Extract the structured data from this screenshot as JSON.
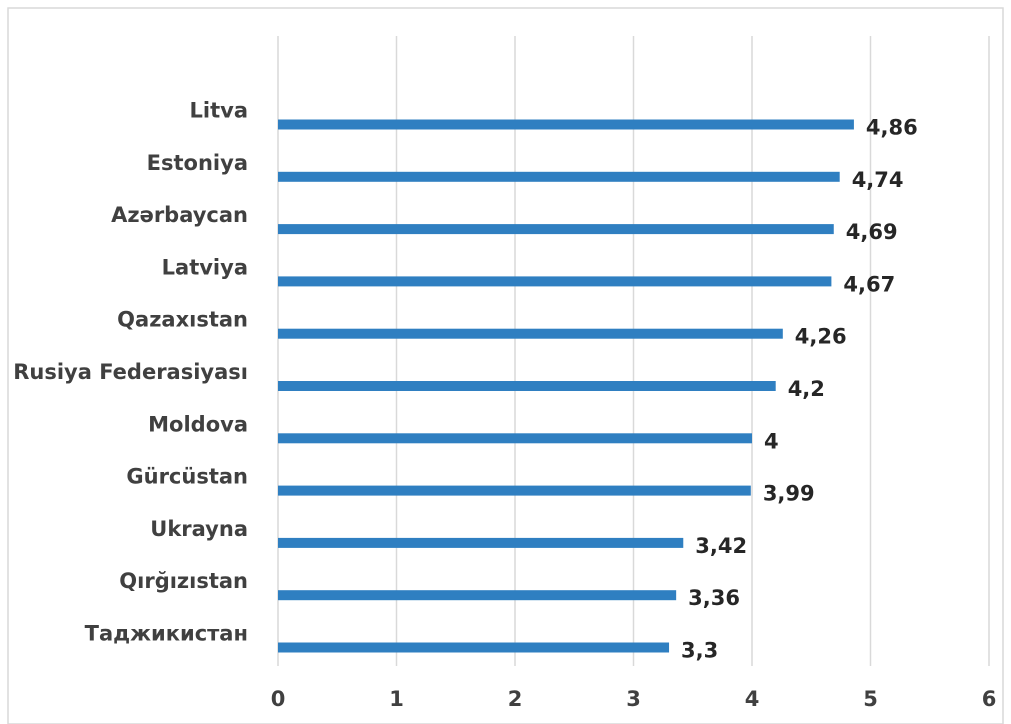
{
  "chart_data": {
    "type": "bar",
    "orientation": "horizontal",
    "categories": [
      "Litva",
      "Estoniya",
      "Azərbaycan",
      "Latviya",
      "Qazaxıstan",
      "Rusiya Federasiyası",
      "Moldova",
      "Gürcüstan",
      "Ukrayna",
      "Qırğızıstan",
      "Таджикистан"
    ],
    "values": [
      4.86,
      4.74,
      4.69,
      4.67,
      4.26,
      4.2,
      4,
      3.99,
      3.42,
      3.36,
      3.3
    ],
    "value_labels": [
      "4,86",
      "4,74",
      "4,69",
      "4,67",
      "4,26",
      "4,2",
      "4",
      "3,99",
      "3,42",
      "3,36",
      "3,3"
    ],
    "x_ticks": [
      "0",
      "1",
      "2",
      "3",
      "4",
      "5",
      "6"
    ],
    "xlim": [
      0,
      6
    ],
    "title": "",
    "xlabel": "",
    "ylabel": "",
    "grid": "vertical",
    "legend": "none",
    "bar_color": "#2f7fc1"
  }
}
